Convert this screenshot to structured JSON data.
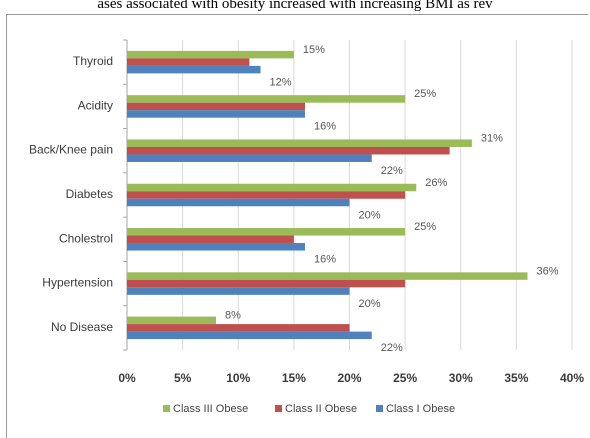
{
  "caption": "ases associated with obesity increased with increasing BMI as rev",
  "chart_data": {
    "type": "bar",
    "orientation": "horizontal",
    "categories": [
      "Thyroid",
      "Acidity",
      "Back/Knee pain",
      "Diabetes",
      "Cholestrol",
      "Hypertension",
      "No Disease"
    ],
    "series": [
      {
        "name": "Class III Obese",
        "color": "#9bbb59",
        "values": [
          15,
          25,
          31,
          26,
          25,
          36,
          8
        ],
        "labels": [
          "15%",
          "25%",
          "31%",
          "26%",
          "25%",
          "36%",
          "8%"
        ]
      },
      {
        "name": "Class II Obese",
        "color": "#c0504d",
        "values": [
          11,
          16,
          29,
          25,
          15,
          25,
          20
        ],
        "labels": [
          "",
          "",
          "",
          "",
          "",
          "",
          ""
        ]
      },
      {
        "name": "Class I Obese",
        "color": "#4f81bd",
        "values": [
          12,
          16,
          22,
          20,
          16,
          20,
          22
        ],
        "labels": [
          "12%",
          "16%",
          "22%",
          "20%",
          "16%",
          "20%",
          "22%"
        ]
      }
    ],
    "xlim": [
      0,
      40
    ],
    "xticks": [
      "0%",
      "5%",
      "10%",
      "15%",
      "20%",
      "25%",
      "30%",
      "35%",
      "40%"
    ],
    "grid": true,
    "legend": "bottom"
  }
}
